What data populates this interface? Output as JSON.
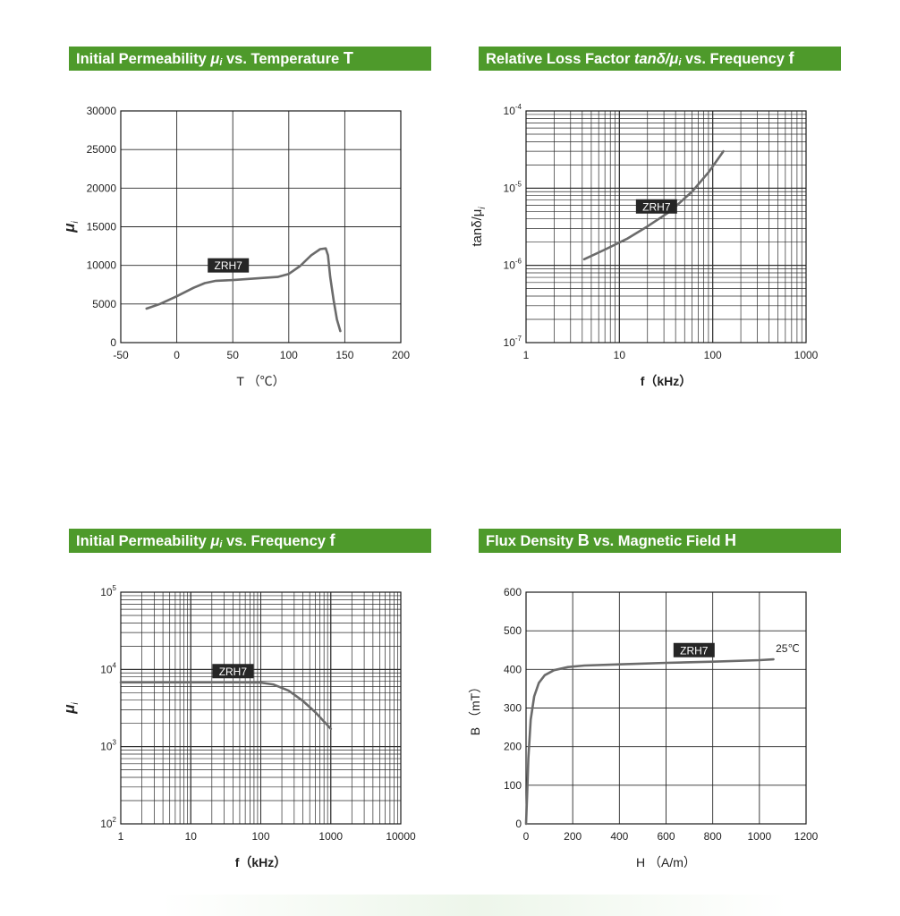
{
  "banners": {
    "b1": {
      "pre": "Initial Permeability ",
      "sym": "μ",
      "sub": "i",
      "post": " vs. Temperature ",
      "end": "T"
    },
    "b2": {
      "pre": "Relative Loss Factor ",
      "sym": "tanδ/μ",
      "sub": "i",
      "post": " vs. Frequency ",
      "end": "f"
    },
    "b3": {
      "pre": "Initial Permeability ",
      "sym": "μ",
      "sub": "i",
      "post": " vs. Frequency ",
      "end": "f"
    },
    "b4": {
      "pre": "Flux Density ",
      "sym": "B",
      "sub": "",
      "post": " vs. Magnetic Field ",
      "end": "H"
    }
  },
  "chart_data": [
    {
      "id": "mu-vs-temperature",
      "type": "line",
      "xlabel": "T （℃）",
      "ylabel": "μ",
      "ylabel_sub": "i",
      "xlim": [
        -50,
        200
      ],
      "ylim": [
        0,
        30000
      ],
      "x_scale": "linear",
      "y_scale": "linear",
      "xticks": [
        -50,
        0,
        50,
        100,
        150,
        200
      ],
      "yticks": [
        0,
        5000,
        10000,
        15000,
        20000,
        25000,
        30000
      ],
      "grid": true,
      "series": [
        {
          "name": "ZRH7",
          "x": [
            -27,
            -15,
            0,
            15,
            25,
            35,
            50,
            70,
            90,
            100,
            110,
            120,
            128,
            133,
            135,
            137,
            140,
            143,
            146
          ],
          "y": [
            4400,
            5000,
            6000,
            7100,
            7700,
            8000,
            8100,
            8300,
            8500,
            8900,
            9900,
            11300,
            12100,
            12200,
            11300,
            8500,
            5500,
            3000,
            1500
          ]
        }
      ],
      "annotations": [
        {
          "text": "ZRH7",
          "x": 46,
          "y": 10000
        }
      ]
    },
    {
      "id": "loss-factor-vs-frequency",
      "type": "line",
      "xlabel": "f（kHz）",
      "ylabel": "tanδ/μ",
      "ylabel_sub": "i",
      "xlim": [
        1,
        1000
      ],
      "ylim": [
        1e-07,
        0.0001
      ],
      "x_scale": "log",
      "y_scale": "log",
      "xticks": [
        "1",
        "10",
        "100",
        "1000"
      ],
      "yticks": [
        {
          "base": "10",
          "exp": "-7"
        },
        {
          "base": "10",
          "exp": "-6"
        },
        {
          "base": "10",
          "exp": "-5"
        },
        {
          "base": "10",
          "exp": "-4"
        }
      ],
      "grid": true,
      "series": [
        {
          "name": "ZRH7",
          "x": [
            4.2,
            7,
            12,
            20,
            35,
            60,
            90,
            130
          ],
          "y": [
            1.2e-06,
            1.6e-06,
            2.2e-06,
            3.2e-06,
            5e-06,
            9e-06,
            1.6e-05,
            3e-05
          ]
        }
      ],
      "annotations": [
        {
          "text": "ZRH7",
          "x": 25,
          "y": 5.8e-06
        }
      ]
    },
    {
      "id": "mu-vs-frequency",
      "type": "line",
      "xlabel": "f（kHz）",
      "ylabel": "μ",
      "ylabel_sub": "i",
      "xlim": [
        1,
        10000
      ],
      "ylim": [
        100,
        100000
      ],
      "x_scale": "log",
      "y_scale": "log",
      "xticks": [
        "1",
        "10",
        "100",
        "1000",
        "10000"
      ],
      "yticks": [
        {
          "base": "10",
          "exp": "2"
        },
        {
          "base": "10",
          "exp": "3"
        },
        {
          "base": "10",
          "exp": "4"
        },
        {
          "base": "10",
          "exp": "5"
        }
      ],
      "grid": true,
      "series": [
        {
          "name": "ZRH7",
          "x": [
            1,
            10,
            50,
            100,
            150,
            250,
            400,
            600,
            1000
          ],
          "y": [
            6800,
            6800,
            6800,
            6750,
            6400,
            5300,
            3900,
            2800,
            1700
          ]
        }
      ],
      "annotations": [
        {
          "text": "ZRH7",
          "x": 40,
          "y": 9500
        }
      ]
    },
    {
      "id": "b-vs-h",
      "type": "line",
      "xlabel": "H （A/m）",
      "ylabel": "B （mT）",
      "xlim": [
        0,
        1200
      ],
      "ylim": [
        0,
        600
      ],
      "x_scale": "linear",
      "y_scale": "linear",
      "xticks": [
        0,
        200,
        400,
        600,
        800,
        1000,
        1200
      ],
      "yticks": [
        0,
        100,
        200,
        300,
        400,
        500,
        600
      ],
      "grid": true,
      "series": [
        {
          "name": "ZRH7",
          "x": [
            0,
            5,
            10,
            20,
            35,
            55,
            80,
            120,
            180,
            250,
            400,
            600,
            800,
            1000,
            1060
          ],
          "y": [
            0,
            80,
            170,
            270,
            330,
            365,
            385,
            398,
            406,
            410,
            413,
            417,
            420,
            424,
            426
          ]
        }
      ],
      "annotations": [
        {
          "text": "ZRH7",
          "x": 720,
          "y": 450
        },
        {
          "text": "25℃",
          "x": 1070,
          "y": 445
        }
      ]
    }
  ]
}
